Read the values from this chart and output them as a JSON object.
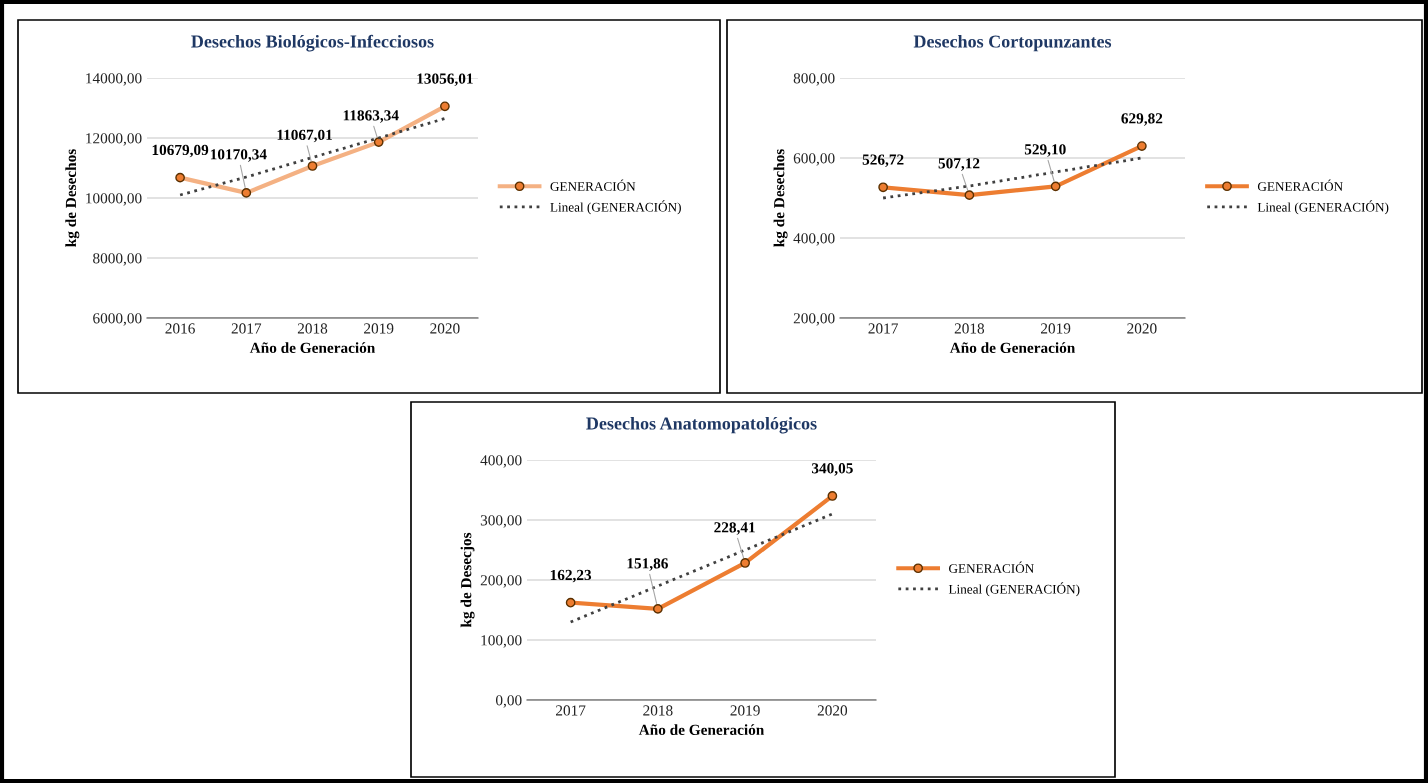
{
  "chart_data": [
    {
      "type": "line",
      "title": "Desechos Biológicos-Infecciosos",
      "xlabel": "Año de Generación",
      "ylabel": "kg de Desechos",
      "categories": [
        "2016",
        "2017",
        "2018",
        "2019",
        "2020"
      ],
      "ylim": [
        6000,
        14000
      ],
      "yticks": [
        {
          "value": 6000,
          "label": "6000,00"
        },
        {
          "value": 8000,
          "label": "8000,00"
        },
        {
          "value": 10000,
          "label": "10000,00"
        },
        {
          "value": 12000,
          "label": "12000,00"
        },
        {
          "value": 14000,
          "label": "14000,00"
        }
      ],
      "grid": "y",
      "legend": "right",
      "series": [
        {
          "name": "GENERACIÓN",
          "color": "#f4b183",
          "marker": "circle",
          "line_style": "solid",
          "values": [
            10679.09,
            10170.34,
            11067.01,
            11863.34,
            13056.01
          ],
          "value_labels": [
            "10679,09",
            "10170,34",
            "11067,01",
            "11863,34",
            "13056,01"
          ]
        },
        {
          "name": "Lineal (GENERACIÓN)",
          "type": "line",
          "color": "#404040",
          "marker": "none",
          "line_style": "dotted",
          "values": [
            10100,
            10700,
            11350,
            12000,
            12650
          ]
        }
      ]
    },
    {
      "type": "line",
      "title": "Desechos Cortopunzantes",
      "xlabel": "Año de Generación",
      "ylabel": "kg de Desechos",
      "categories": [
        "2017",
        "2018",
        "2019",
        "2020"
      ],
      "ylim": [
        200,
        800
      ],
      "yticks": [
        {
          "value": 200,
          "label": "200,00"
        },
        {
          "value": 400,
          "label": "400,00"
        },
        {
          "value": 600,
          "label": "600,00"
        },
        {
          "value": 800,
          "label": "800,00"
        }
      ],
      "grid": "y",
      "legend": "right",
      "series": [
        {
          "name": "GENERACIÓN",
          "color": "#ed7d31",
          "marker": "circle",
          "line_style": "solid",
          "values": [
            526.72,
            507.12,
            529.1,
            629.82
          ],
          "value_labels": [
            "526,72",
            "507,12",
            "529,10",
            "629,82"
          ]
        },
        {
          "name": "Lineal (GENERACIÓN)",
          "type": "line",
          "color": "#404040",
          "marker": "none",
          "line_style": "dotted",
          "values": [
            500,
            530,
            565,
            600
          ]
        }
      ]
    },
    {
      "type": "line",
      "title": "Desechos Anatomopatológicos",
      "xlabel": "Año de Generación",
      "ylabel": "kg de Desecjos",
      "categories": [
        "2017",
        "2018",
        "2019",
        "2020"
      ],
      "ylim": [
        0,
        400
      ],
      "yticks": [
        {
          "value": 0,
          "label": "0,00"
        },
        {
          "value": 100,
          "label": "100,00"
        },
        {
          "value": 200,
          "label": "200,00"
        },
        {
          "value": 300,
          "label": "300,00"
        },
        {
          "value": 400,
          "label": "400,00"
        }
      ],
      "grid": "y",
      "legend": "right",
      "series": [
        {
          "name": "GENERACIÓN",
          "color": "#ed7d31",
          "marker": "circle",
          "line_style": "solid",
          "values": [
            162.23,
            151.86,
            228.41,
            340.05
          ],
          "value_labels": [
            "162,23",
            "151,86",
            "228,41",
            "340,05"
          ]
        },
        {
          "name": "Lineal (GENERACIÓN)",
          "type": "line",
          "color": "#404040",
          "marker": "none",
          "line_style": "dotted",
          "values": [
            130,
            190,
            250,
            310
          ]
        }
      ]
    }
  ]
}
